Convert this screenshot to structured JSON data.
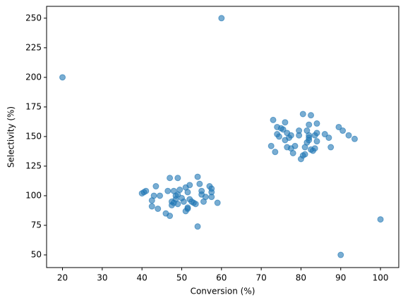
{
  "chart_data": {
    "type": "scatter",
    "xlabel": "Conversion (%)",
    "ylabel": "Selectivity (%)",
    "color": "#1f77b4",
    "xlim": [
      16,
      104.6
    ],
    "ylim": [
      39.3,
      260
    ],
    "xticks": [
      20,
      30,
      40,
      50,
      60,
      70,
      80,
      90,
      100
    ],
    "yticks": [
      50,
      75,
      100,
      125,
      150,
      175,
      200,
      225,
      250
    ],
    "grid": false,
    "series": [
      {
        "name": null,
        "color": "#1f77b4",
        "x": [
          40,
          40.5,
          41,
          42.5,
          42.5,
          43,
          43.5,
          44,
          44.5,
          46,
          46.5,
          47,
          47,
          47.5,
          47.5,
          48,
          48.5,
          48.5,
          49,
          49,
          49,
          49.5,
          50,
          50.5,
          51,
          51,
          51.5,
          51.5,
          52,
          52,
          52.5,
          53,
          53.5,
          54,
          54,
          54.5,
          55,
          55,
          55.5,
          56,
          57,
          57.5,
          57.5,
          57.5,
          59,
          51.5,
          48,
          72.5,
          73,
          73.5,
          74,
          74,
          74.5,
          75,
          75.5,
          76,
          76,
          76.5,
          76.5,
          77,
          77.5,
          77.5,
          78,
          78.5,
          79.5,
          79.5,
          80,
          80.5,
          80.5,
          81,
          81,
          81.5,
          81.5,
          82,
          82,
          82,
          82,
          82.5,
          82.5,
          83,
          83.5,
          83.5,
          84,
          84,
          84,
          86,
          87,
          87.5,
          89.5,
          90.5,
          92,
          93.5,
          20,
          60,
          90,
          100
        ],
        "values": [
          102,
          103,
          104,
          96,
          91,
          100,
          108,
          89,
          100,
          85,
          104,
          83,
          115,
          95,
          92,
          104,
          100,
          97,
          115,
          93,
          101,
          105,
          98,
          95,
          107,
          87,
          103,
          89,
          109,
          97,
          95,
          94,
          93,
          116,
          74,
          110,
          104,
          101,
          95,
          99,
          108,
          106,
          103,
          99,
          94,
          90,
          94,
          142,
          164,
          137,
          152,
          158,
          150,
          157,
          156,
          162,
          147,
          141,
          153,
          149,
          140,
          151,
          136,
          142,
          155,
          151,
          131,
          134,
          169,
          141,
          135,
          145,
          155,
          151,
          149,
          160,
          147,
          168,
          139,
          138,
          140,
          151,
          161,
          153,
          146,
          152,
          149,
          141,
          158,
          155,
          151,
          148,
          200,
          250,
          50,
          80
        ]
      }
    ]
  }
}
